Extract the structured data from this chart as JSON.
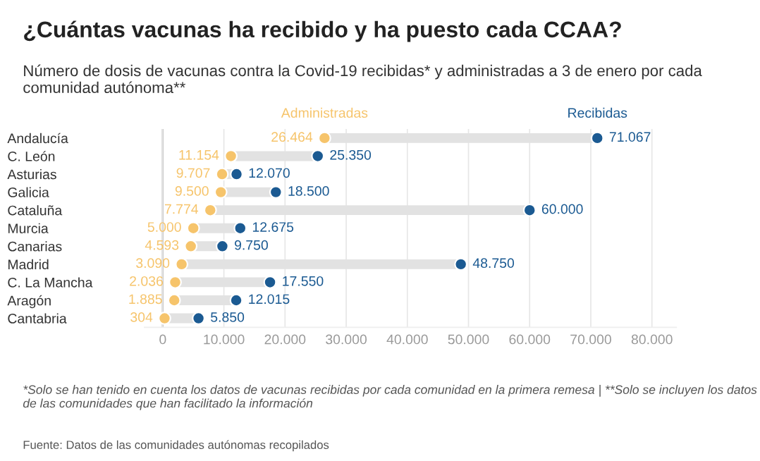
{
  "chart_data": {
    "type": "scatter",
    "orientation": "horizontal",
    "title": "¿Cuántas vacunas ha recibido y ha puesto cada CCAA?",
    "subtitle": "Número de dosis de vacunas contra la Covid-19 recibidas* y administradas a 3 de enero por cada comunidad autónoma**",
    "annotations": [
      "*Solo se han tenido en cuenta los datos de vacunas recibidas por cada comunidad en la primera remesa | **Solo se incluyen los datos de las comunidades que han facilitado la información",
      "Fuente: Datos de las comunidades autónomas recopilados"
    ],
    "categories": [
      "Andalucía",
      "C. León",
      "Asturias",
      "Galicia",
      "Cataluña",
      "Murcia",
      "Canarias",
      "Madrid",
      "C. La Mancha",
      "Aragón",
      "Cantabria"
    ],
    "series": [
      {
        "name": "Administradas",
        "color": "#f6c46b",
        "values": [
          26464,
          11154,
          9707,
          9500,
          7774,
          5000,
          4593,
          3090,
          2036,
          1885,
          304
        ],
        "value_labels": [
          "26.464",
          "11.154",
          "9.707",
          "9.500",
          "7.774",
          "5.000",
          "4.593",
          "3.090",
          "2.036",
          "1.885",
          "304"
        ]
      },
      {
        "name": "Recibidas",
        "color": "#1b5a92",
        "values": [
          71067,
          25350,
          12070,
          18500,
          60000,
          12675,
          9750,
          48750,
          17550,
          12015,
          5850
        ],
        "value_labels": [
          "71.067",
          "25.350",
          "12.070",
          "18.500",
          "60.000",
          "12.675",
          "9.750",
          "48.750",
          "17.550",
          "12.015",
          "5.850"
        ]
      }
    ],
    "xlim": [
      -3000,
      84000
    ],
    "xticks": [
      {
        "value": 0,
        "label": "0"
      },
      {
        "value": 10000,
        "label": "10.000"
      },
      {
        "value": 20000,
        "label": "20.000"
      },
      {
        "value": 30000,
        "label": "30.000"
      },
      {
        "value": 40000,
        "label": "40.000"
      },
      {
        "value": 50000,
        "label": "50.000"
      },
      {
        "value": 60000,
        "label": "60.000"
      },
      {
        "value": 70000,
        "label": "70.000"
      },
      {
        "value": 80000,
        "label": "80.000"
      }
    ],
    "grid": "x",
    "marker": "circle"
  }
}
